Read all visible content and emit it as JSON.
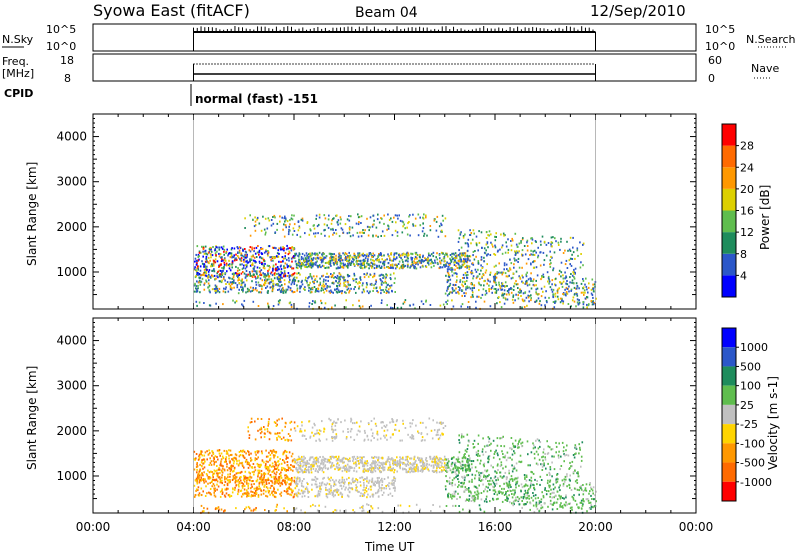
{
  "header": {
    "station": "Syowa East (fitACF)",
    "beam": "Beam 04",
    "date": "12/Sep/2010"
  },
  "nsky_panel": {
    "left_label": "N.Sky",
    "left_ticks": [
      "10^5",
      "10^0"
    ],
    "right_ticks": [
      "10^5",
      "10^0"
    ],
    "right_label": "N.Search"
  },
  "freq_panel": {
    "left_label_1": "Freq.",
    "left_label_2": "[MHz]",
    "left_ticks": [
      "18",
      "8"
    ],
    "right_ticks": [
      "60",
      "0"
    ],
    "right_label": "Nave"
  },
  "cpid": {
    "label": "CPID",
    "mode": "normal (fast) -151"
  },
  "chart_data": [
    {
      "type": "heatmap",
      "quantity": "Power",
      "ylabel": "Slant Range [km]",
      "xlabel": "",
      "ylim": [
        180,
        4500
      ],
      "yticks": [
        "1000",
        "2000",
        "3000",
        "4000"
      ],
      "colorbar_label": "Power [dB]",
      "colorbar_ticks": [
        "4",
        "8",
        "12",
        "16",
        "20",
        "24",
        "28"
      ],
      "colorbar_colors": [
        "#0000ff",
        "#2b57c9",
        "#1e8c5c",
        "#5fbd4e",
        "#ddd000",
        "#ff9800",
        "#ff6a00",
        "#ff0000"
      ],
      "data_window_hours": [
        4,
        20
      ]
    },
    {
      "type": "heatmap",
      "quantity": "Velocity",
      "ylabel": "Slant Range [km]",
      "xlabel": "Time UT",
      "ylim": [
        180,
        4500
      ],
      "yticks": [
        "1000",
        "2000",
        "3000",
        "4000"
      ],
      "colorbar_label": "Velocity [m s-1]",
      "colorbar_ticks": [
        "1000",
        "500",
        "100",
        "25",
        "-25",
        "-100",
        "-500",
        "-1000"
      ],
      "colorbar_colors": [
        "#0000ff",
        "#2b57c9",
        "#1e8c5c",
        "#5fbd4e",
        "#c0c0c0",
        "#ffd400",
        "#ff9800",
        "#ff6a00",
        "#ff0000"
      ],
      "xticks": [
        "00:00",
        "04:00",
        "08:00",
        "12:00",
        "16:00",
        "20:00",
        "00:00"
      ],
      "data_window_hours": [
        4,
        20
      ]
    }
  ]
}
